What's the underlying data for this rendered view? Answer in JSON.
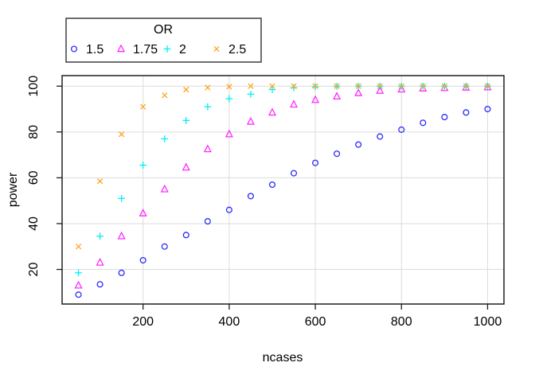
{
  "chart_data": {
    "type": "scatter",
    "title": "",
    "xlabel": "ncases",
    "ylabel": "power",
    "xlim": [
      12,
      1038
    ],
    "ylim": [
      4.9,
      104.6
    ],
    "xticks": [
      200,
      400,
      600,
      800,
      1000
    ],
    "yticks": [
      20,
      40,
      60,
      80,
      100
    ],
    "grid": true,
    "legend": {
      "title": "OR",
      "position": "top-left-inset"
    },
    "x": [
      50,
      100,
      150,
      200,
      250,
      300,
      350,
      400,
      450,
      500,
      550,
      600,
      650,
      700,
      750,
      800,
      850,
      900,
      950,
      1000
    ],
    "series": [
      {
        "name": "1.5",
        "marker": "circle",
        "color": "#2a2aff",
        "values": [
          9,
          13.5,
          18.5,
          24,
          30,
          35,
          41,
          46,
          52,
          57,
          62,
          66.5,
          70.5,
          74.5,
          78,
          81,
          84,
          86.5,
          88.5,
          90
        ]
      },
      {
        "name": "1.75",
        "marker": "triangle",
        "color": "#ff2bff",
        "values": [
          13,
          23,
          34.5,
          44.5,
          55,
          64.5,
          72.5,
          79,
          84.5,
          88.5,
          92,
          94,
          95.5,
          97,
          98,
          98.6,
          99,
          99.2,
          99.4,
          99.5
        ]
      },
      {
        "name": "2",
        "marker": "plus",
        "color": "#00f0f5",
        "values": [
          18.5,
          34.5,
          51,
          65.5,
          77,
          85,
          91,
          94.5,
          96.5,
          98.5,
          99.3,
          99.7,
          99.9,
          100,
          100,
          100,
          100,
          100,
          100,
          100
        ]
      },
      {
        "name": "2.5",
        "marker": "x",
        "color": "#ffa51f",
        "values": [
          30,
          58.5,
          79,
          91,
          96,
          98.5,
          99.4,
          99.8,
          100,
          100,
          100,
          100,
          100,
          100,
          100,
          100,
          100,
          100,
          100,
          100
        ]
      }
    ],
    "colors": {
      "grid": "#dcdcdc",
      "axis": "#1f1f1f",
      "background": "#ffffff"
    }
  }
}
